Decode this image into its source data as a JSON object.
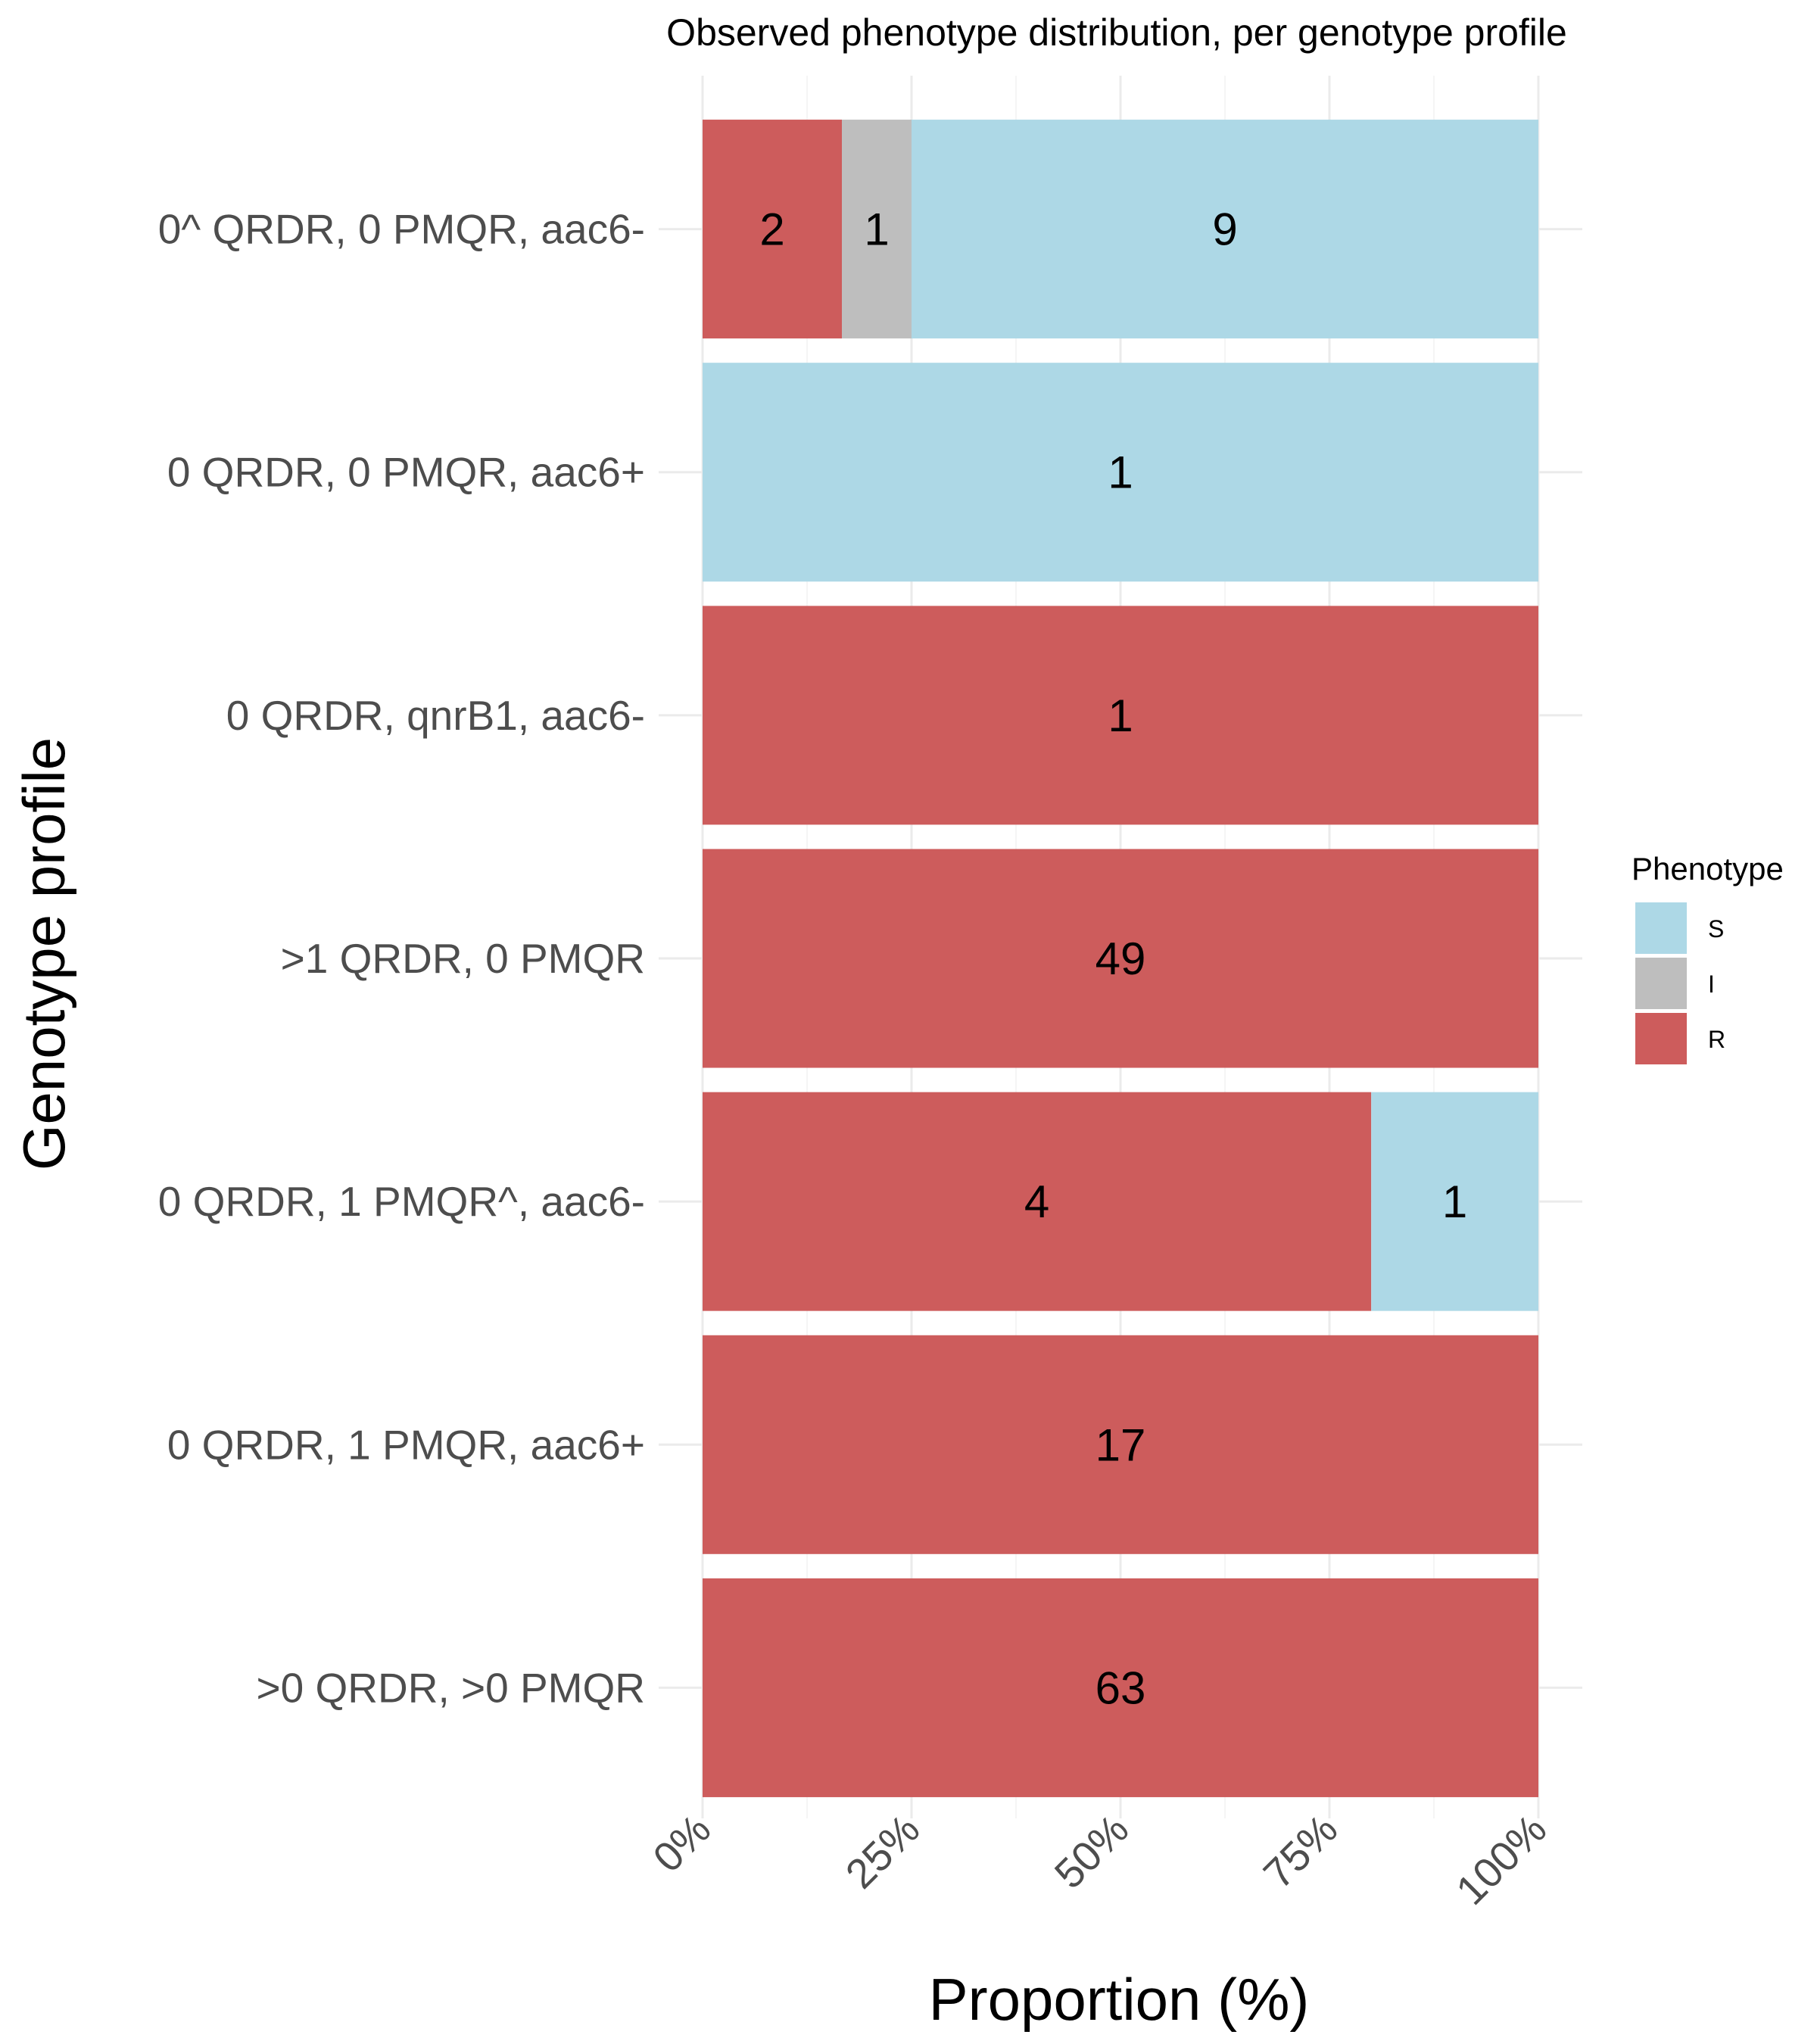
{
  "chart_data": {
    "type": "bar",
    "orientation": "horizontal",
    "stacked": "percent",
    "title": "Observed phenotype distribution, per genotype profile",
    "xlabel": "Proportion (%)",
    "ylabel": "Genotype profile",
    "xlim": [
      0,
      100
    ],
    "x_ticks": [
      "0%",
      "25%",
      "50%",
      "75%",
      "100%"
    ],
    "grid": true,
    "legend": {
      "title": "Phenotype",
      "placement": "right",
      "entries": [
        "S",
        "I",
        "R"
      ]
    },
    "colors": {
      "S": "#add8e6",
      "I": "#bebebe",
      "R": "#cd5c5c"
    },
    "stack_order": [
      "R",
      "I",
      "S"
    ],
    "categories": [
      "0^ QRDR, 0 PMQR, aac6-",
      "0 QRDR, 0 PMQR, aac6+",
      "0 QRDR, qnrB1, aac6-",
      ">1 QRDR, 0 PMQR",
      "0 QRDR, 1 PMQR^, aac6-",
      "0 QRDR, 1 PMQR, aac6+",
      ">0 QRDR, >0 PMQR"
    ],
    "series": [
      {
        "name": "S",
        "values": [
          9,
          1,
          0,
          0,
          1,
          0,
          0
        ]
      },
      {
        "name": "I",
        "values": [
          1,
          0,
          0,
          0,
          0,
          0,
          0
        ]
      },
      {
        "name": "R",
        "values": [
          2,
          0,
          1,
          49,
          4,
          17,
          63
        ]
      }
    ]
  }
}
